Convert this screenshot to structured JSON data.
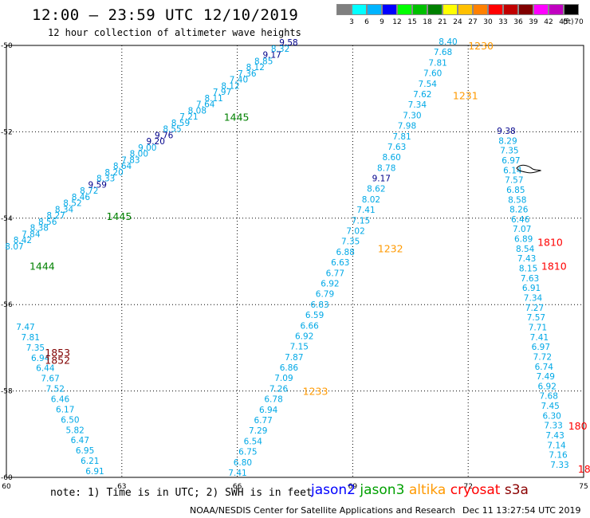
{
  "header": {
    "title": "12:00 – 23:59 UTC 12/10/2019",
    "subtitle": "12 hour collection of altimeter wave heights"
  },
  "legend": {
    "unit": "(ft)",
    "bins": [
      {
        "label": "3",
        "color": "#7f7f7f"
      },
      {
        "label": "6",
        "color": "#00ffff"
      },
      {
        "label": "9",
        "color": "#00b4ff"
      },
      {
        "label": "12",
        "color": "#0000ff"
      },
      {
        "label": "15",
        "color": "#00ff00"
      },
      {
        "label": "18",
        "color": "#00c000"
      },
      {
        "label": "21",
        "color": "#008000"
      },
      {
        "label": "24",
        "color": "#ffff00"
      },
      {
        "label": "27",
        "color": "#ffc000"
      },
      {
        "label": "30",
        "color": "#ff8000"
      },
      {
        "label": "33",
        "color": "#ff0000"
      },
      {
        "label": "36",
        "color": "#c00000"
      },
      {
        "label": "39",
        "color": "#800000"
      },
      {
        "label": "42",
        "color": "#ff00ff"
      },
      {
        "label": "45",
        "color": "#c000c0"
      },
      {
        "label": "70",
        "color": "#000000"
      }
    ]
  },
  "axes": {
    "lon_ticks": [
      "60",
      "63",
      "66",
      "69",
      "72",
      "75"
    ],
    "lat_ticks": [
      "-50",
      "-52",
      "-54",
      "-56",
      "-58",
      "-60"
    ]
  },
  "tracks": [
    {
      "name": "track-1",
      "start": [
        18,
        313
      ],
      "end": [
        362,
        57
      ],
      "values": [
        "8.07",
        "8.42",
        "7.84",
        "8.38",
        "8.56",
        "8.27",
        "8.34",
        "8.52",
        "8.46",
        "8.72",
        "9.59",
        "8.33",
        "8.20",
        "8.64",
        "7.83",
        "8.00",
        "9.00",
        "9.20",
        "9.76",
        "8.55",
        "8.59",
        "7.21",
        "8.08",
        "7.64",
        "8.11",
        "7.97",
        "8.12",
        "7.40",
        "7.36",
        "8.12",
        "8.85",
        "9.17",
        "8.32",
        "9.58"
      ],
      "colors": {
        "10": "#00008b",
        "17": "#00008b",
        "18": "#00008b",
        "31": "#00008b",
        "33": "#00008b"
      }
    },
    {
      "name": "track-2",
      "start": [
        298,
        597
      ],
      "end": [
        562,
        56
      ],
      "values": [
        "7.41",
        "6.80",
        "6.75",
        "6.54",
        "7.29",
        "6.77",
        "6.94",
        "6.78",
        "7.26",
        "7.09",
        "6.86",
        "7.87",
        "7.15",
        "6.92",
        "6.66",
        "6.59",
        "6.83",
        "6.79",
        "6.92",
        "6.77",
        "6.63",
        "6.88",
        "7.35",
        "7.02",
        "7.15",
        "7.41",
        "8.02",
        "8.62",
        "9.17",
        "8.78",
        "8.60",
        "7.63",
        "7.81",
        "7.98",
        "7.30",
        "7.34",
        "7.62",
        "7.54",
        "7.60",
        "7.81",
        "7.68",
        "8.40"
      ],
      "colors": {
        "28": "#00008b"
      }
    },
    {
      "name": "track-3",
      "start": [
        635,
        168
      ],
      "end": [
        702,
        587
      ],
      "values": [
        "9.38",
        "8.29",
        "7.35",
        "6.97",
        "6.14",
        "7.57",
        "6.85",
        "8.58",
        "8.26",
        "6.46",
        "7.07",
        "6.89",
        "8.54",
        "7.43",
        "8.15",
        "7.63",
        "6.91",
        "7.34",
        "7.27",
        "7.57",
        "7.71",
        "7.41",
        "6.97",
        "7.72",
        "6.74",
        "7.49",
        "6.92",
        "7.68",
        "7.45",
        "6.30",
        "7.33",
        "7.43",
        "7.14",
        "7.16",
        "7.33"
      ],
      "colors": {
        "0": "#00008b"
      }
    },
    {
      "name": "track-4",
      "start": [
        32,
        414
      ],
      "end": [
        119,
        595
      ],
      "values": [
        "7.47",
        "7.81",
        "7.35",
        "6.94",
        "6.44",
        "7.67",
        "7.52",
        "6.46",
        "6.17",
        "6.50",
        "5.82",
        "6.47",
        "6.95",
        "6.21",
        "6.91"
      ],
      "colors": {}
    }
  ],
  "time_labels": [
    {
      "text": "1230",
      "color": "#ff9900",
      "lon": 72.0,
      "lat": -50.0
    },
    {
      "text": "1231",
      "color": "#ff9900",
      "lon": 71.6,
      "lat": -51.15
    },
    {
      "text": "1232",
      "color": "#ff9900",
      "lon": 69.65,
      "lat": -54.7
    },
    {
      "text": "1233",
      "color": "#ff9900",
      "lon": 67.7,
      "lat": -58.0
    },
    {
      "text": "1444",
      "color": "#008000",
      "lon": 60.6,
      "lat": -55.1
    },
    {
      "text": "1445",
      "color": "#008000",
      "lon": 62.6,
      "lat": -53.95
    },
    {
      "text": "1445",
      "color": "#008000",
      "lon": 65.65,
      "lat": -51.65
    },
    {
      "text": "1810",
      "color": "#ff0000",
      "lon": 73.8,
      "lat": -54.55
    },
    {
      "text": "1810",
      "color": "#ff0000",
      "lon": 73.9,
      "lat": -55.1
    },
    {
      "text": "180",
      "color": "#ff0000",
      "lon": 74.6,
      "lat": -58.8
    },
    {
      "text": "18",
      "color": "#ff0000",
      "lon": 74.85,
      "lat": -59.8
    },
    {
      "text": "1853",
      "color": "#800000",
      "lon": 61.0,
      "lat": -57.1
    },
    {
      "text": "1852",
      "color": "#800000",
      "lon": 61.0,
      "lat": -57.28
    }
  ],
  "footer": {
    "note": "note: 1) Time is in UTC; 2) SWH is in feet",
    "satellites": [
      {
        "name": "jason2",
        "color": "#0000ff"
      },
      {
        "name": "jason3",
        "color": "#00a000"
      },
      {
        "name": "altika",
        "color": "#ff9900"
      },
      {
        "name": "cryosat",
        "color": "#ff0000"
      },
      {
        "name": "s3a",
        "color": "#8b0000"
      }
    ],
    "credit": "NOAA/NESDIS Center for Satellite Applications and Research",
    "timestamp": "Dec 11 13:27:54 UTC 2019"
  }
}
